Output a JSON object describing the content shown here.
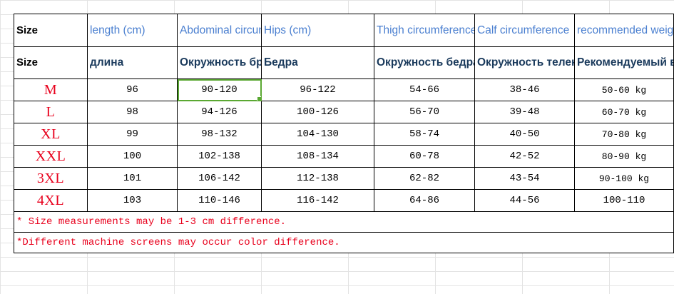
{
  "header_en": {
    "size": "Size",
    "length": "length (cm)",
    "abdominal": "Abdominal circumference",
    "hips": "Hips (cm)",
    "thigh": "Thigh circumference",
    "calf": "Calf circumference",
    "weight": "recommended weight (kg)"
  },
  "header_ru": {
    "size": "Size",
    "length": "длина",
    "abdominal": "Окружность брюшной поло",
    "hips": "Бедра",
    "thigh": "Окружность бедра",
    "calf": "Окружность теленка",
    "weight": "Рекомендуемый вес（kg)"
  },
  "rows": [
    {
      "size": "M",
      "length": "96",
      "abdominal": "90-120",
      "hips": "96-122",
      "thigh": "54-66",
      "calf": "38-46",
      "weight": "50-60 kg"
    },
    {
      "size": "L",
      "length": "98",
      "abdominal": "94-126",
      "hips": "100-126",
      "thigh": "56-70",
      "calf": "39-48",
      "weight": "60-70 kg"
    },
    {
      "size": "XL",
      "length": "99",
      "abdominal": "98-132",
      "hips": "104-130",
      "thigh": "58-74",
      "calf": "40-50",
      "weight": "70-80 kg"
    },
    {
      "size": "XXL",
      "length": "100",
      "abdominal": "102-138",
      "hips": "108-134",
      "thigh": "60-78",
      "calf": "42-52",
      "weight": "80-90 kg"
    },
    {
      "size": "3XL",
      "length": "101",
      "abdominal": "106-142",
      "hips": "112-138",
      "thigh": "62-82",
      "calf": "43-54",
      "weight": "90-100 kg"
    },
    {
      "size": "4XL",
      "length": "103",
      "abdominal": "110-146",
      "hips": "116-142",
      "thigh": "64-86",
      "calf": "44-56",
      "weight": "100-110"
    }
  ],
  "notes": [
    "* Size measurements may be 1-3 cm difference.",
    "*Different machine screens may occur color difference."
  ],
  "colors": {
    "size_red": "#e8001c",
    "header_blue": "#4a7fd0",
    "header_dark": "#1a3a5c",
    "selection_green": "#5aa832"
  }
}
